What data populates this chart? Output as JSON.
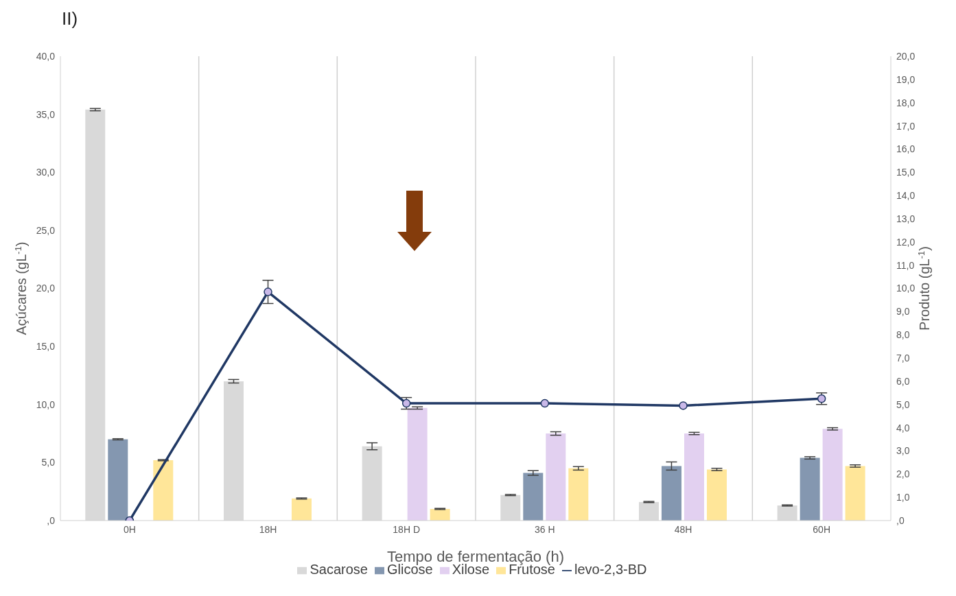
{
  "chart_data": {
    "type": "bar",
    "title": "II)",
    "xlabel": "Tempo de fermentação (h)",
    "ylabel": "Açúcares (gL$^{-1}$)",
    "y2label": "Produto (gL$^{-1}$)",
    "categories": [
      "0H",
      "18H",
      "18H D",
      "36 H",
      "48H",
      "60H"
    ],
    "series": [
      {
        "name": "Sacarose",
        "color": "#d9d9d9",
        "values": [
          35.4,
          12.0,
          6.4,
          2.2,
          1.6,
          1.3
        ],
        "errors": [
          0.1,
          0.15,
          0.3,
          0.05,
          0.05,
          0.05
        ]
      },
      {
        "name": "Glicose",
        "color": "#8497b0",
        "values": [
          7.0,
          0,
          0,
          4.1,
          4.7,
          5.4
        ],
        "errors": [
          0.05,
          null,
          null,
          0.2,
          0.35,
          0.1
        ]
      },
      {
        "name": "Xilose",
        "color": "#e2d0f0",
        "values": [
          0,
          0,
          9.7,
          7.5,
          7.5,
          7.9
        ],
        "errors": [
          null,
          null,
          0.1,
          0.15,
          0.1,
          0.1
        ]
      },
      {
        "name": "Frutose",
        "color": "#ffe699",
        "values": [
          5.2,
          1.9,
          1.0,
          4.5,
          4.4,
          4.7
        ],
        "errors": [
          0.05,
          0.05,
          0.05,
          0.15,
          0.1,
          0.1
        ]
      },
      {
        "name": "levo-2,3-BD",
        "type": "line",
        "axis": "y2",
        "color": "#203864",
        "values": [
          0,
          9.85,
          5.05,
          5.05,
          4.95,
          5.25
        ],
        "errors": [
          null,
          0.5,
          0.25,
          null,
          null,
          0.25
        ]
      }
    ],
    "ylim": [
      0,
      40
    ],
    "yticks": [
      {
        "value": 0,
        "label": ",0"
      },
      {
        "value": 5,
        "label": "5,0"
      },
      {
        "value": 10,
        "label": "10,0"
      },
      {
        "value": 15,
        "label": "15,0"
      },
      {
        "value": 20,
        "label": "20,0"
      },
      {
        "value": 25,
        "label": "25,0"
      },
      {
        "value": 30,
        "label": "30,0"
      },
      {
        "value": 35,
        "label": "35,0"
      },
      {
        "value": 40,
        "label": "40,0"
      }
    ],
    "y2lim": [
      0,
      20
    ],
    "y2ticks": [
      {
        "value": 0,
        "label": ",0"
      },
      {
        "value": 1,
        "label": "1,0"
      },
      {
        "value": 2,
        "label": "2,0"
      },
      {
        "value": 3,
        "label": "3,0"
      },
      {
        "value": 4,
        "label": "4,0"
      },
      {
        "value": 5,
        "label": "5,0"
      },
      {
        "value": 6,
        "label": "6,0"
      },
      {
        "value": 7,
        "label": "7,0"
      },
      {
        "value": 8,
        "label": "8,0"
      },
      {
        "value": 9,
        "label": "9,0"
      },
      {
        "value": 10,
        "label": "10,0"
      },
      {
        "value": 11,
        "label": "11,0"
      },
      {
        "value": 12,
        "label": "12,0"
      },
      {
        "value": 13,
        "label": "13,0"
      },
      {
        "value": 14,
        "label": "14,0"
      },
      {
        "value": 15,
        "label": "15,0"
      },
      {
        "value": 16,
        "label": "16,0"
      },
      {
        "value": 17,
        "label": "17,0"
      },
      {
        "value": 18,
        "label": "18,0"
      },
      {
        "value": 19,
        "label": "19,0"
      },
      {
        "value": 20,
        "label": "20,0"
      }
    ],
    "grid": "x",
    "legend": "bottom",
    "marker": "circle",
    "line_style": "solid"
  }
}
